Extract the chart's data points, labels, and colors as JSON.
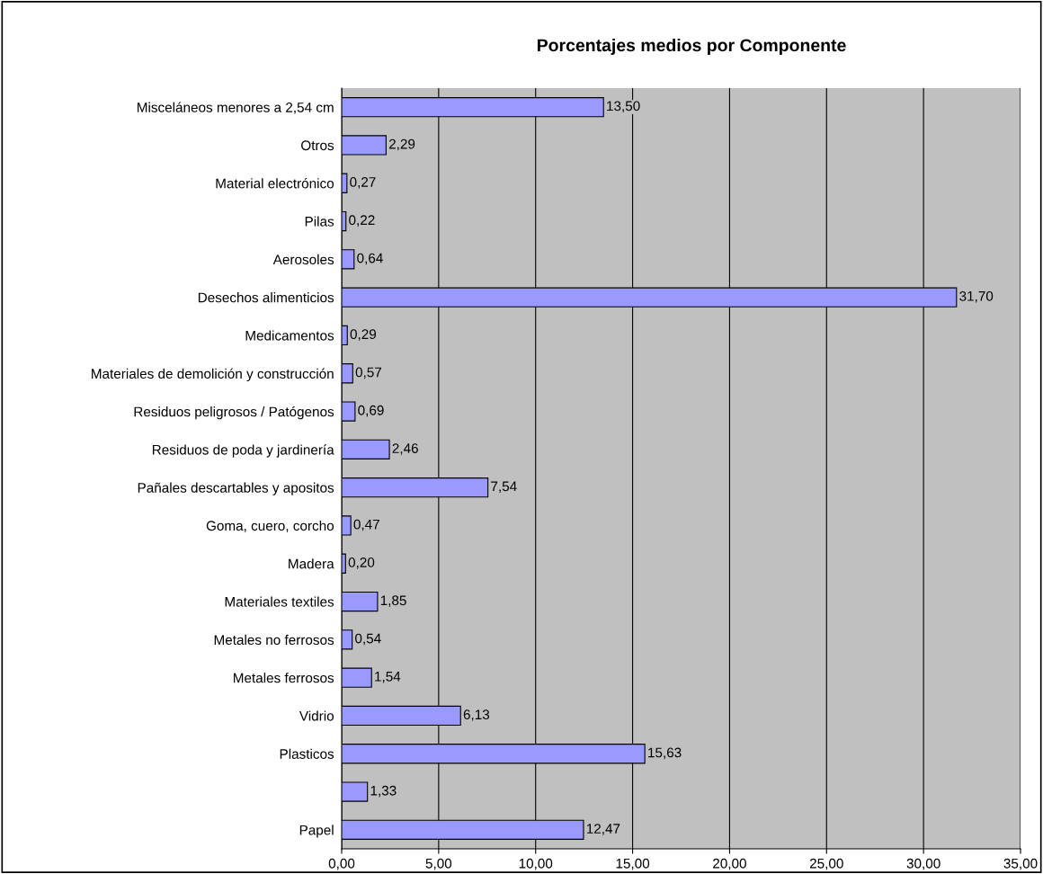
{
  "chart_data": {
    "type": "bar",
    "orientation": "horizontal",
    "title": "Porcentajes medios por Componente",
    "categories": [
      "Misceláneos menores a 2,54 cm",
      "Otros",
      "Material electrónico",
      "Pilas",
      "Aerosoles",
      "Desechos alimenticios",
      "Medicamentos",
      "Materiales de demolición y construcción",
      "Residuos peligrosos / Patógenos",
      "Residuos de poda y jardinería",
      "Pañales descartables y apositos",
      "Goma, cuero, corcho",
      "Madera",
      "Materiales textiles",
      "Metales no ferrosos",
      "Metales ferrosos",
      "Vidrio",
      "Plasticos",
      null,
      "Papel"
    ],
    "values": [
      13.5,
      2.29,
      0.27,
      0.22,
      0.64,
      31.7,
      0.29,
      0.57,
      0.69,
      2.46,
      7.54,
      0.47,
      0.2,
      1.85,
      0.54,
      1.54,
      6.13,
      15.63,
      1.33,
      12.47
    ],
    "value_labels": [
      "13,50",
      "2,29",
      "0,27",
      "0,22",
      "0,64",
      "31,70",
      "0,29",
      "0,57",
      "0,69",
      "2,46",
      "7,54",
      "0,47",
      "0,20",
      "1,85",
      "0,54",
      "1,54",
      "6,13",
      "15,63",
      "1,33",
      "12,47"
    ],
    "color": "#9999ff",
    "xlim": [
      0,
      35
    ],
    "xticks": [
      {
        "value": 0,
        "label": "0,00"
      },
      {
        "value": 5,
        "label": "5,00"
      },
      {
        "value": 10,
        "label": "10,00"
      },
      {
        "value": 15,
        "label": "15,00"
      },
      {
        "value": 20,
        "label": "20,00"
      },
      {
        "value": 25,
        "label": "25,00"
      },
      {
        "value": 30,
        "label": "30,00"
      },
      {
        "value": 35,
        "label": "35,00"
      }
    ],
    "grid": "x"
  }
}
